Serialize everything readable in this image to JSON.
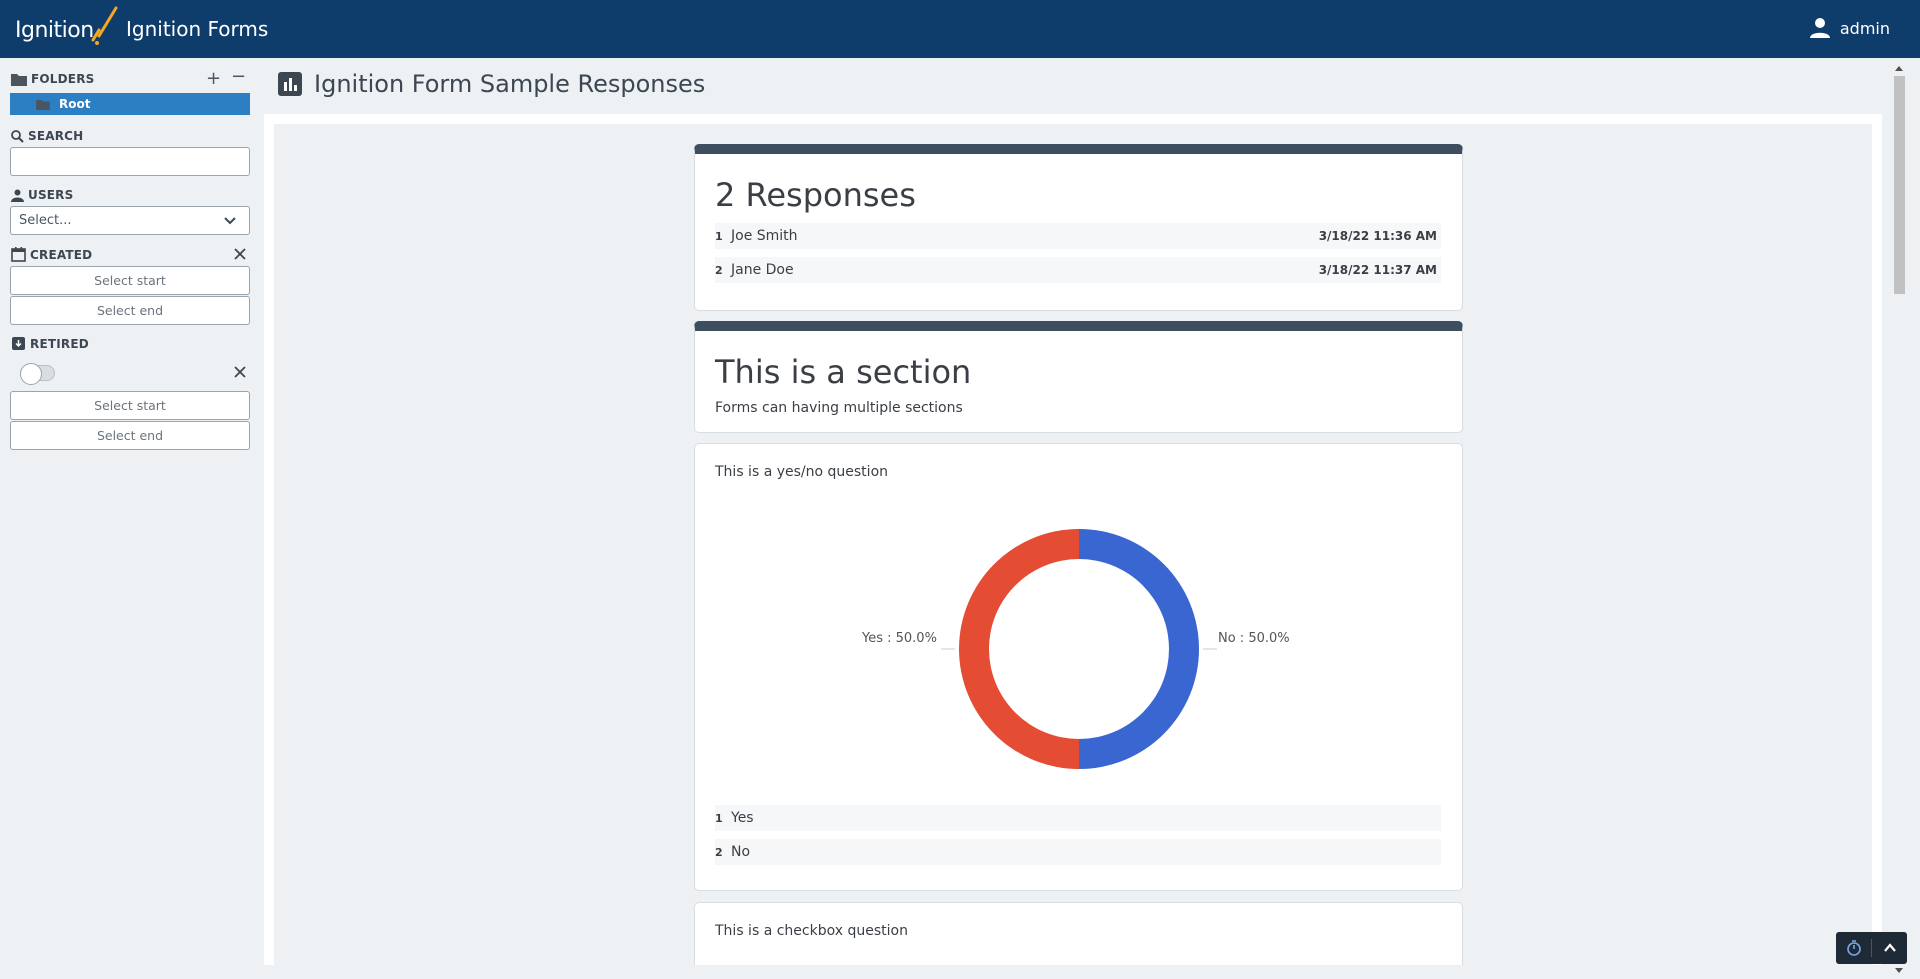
{
  "header": {
    "logo_text": "Ignition",
    "app_title": "Ignition Forms",
    "username": "admin"
  },
  "sidebar": {
    "folders_label": "FOLDERS",
    "root_label": "Root",
    "search_label": "SEARCH",
    "search_value": "",
    "users_label": "USERS",
    "users_placeholder": "Select...",
    "created_label": "CREATED",
    "created_start": "Select start",
    "created_end": "Select end",
    "retired_label": "RETIRED",
    "retired_toggle": false,
    "retired_start": "Select start",
    "retired_end": "Select end"
  },
  "main": {
    "page_title": "Ignition Form Sample Responses",
    "responses": {
      "heading": "2 Responses",
      "rows": [
        {
          "num": "1",
          "name": "Joe Smith",
          "timestamp": "3/18/22 11:36 AM"
        },
        {
          "num": "2",
          "name": "Jane Doe",
          "timestamp": "3/18/22 11:37 AM"
        }
      ]
    },
    "section": {
      "title": "This is a section",
      "subtitle": "Forms can having multiple sections"
    },
    "yesno_question": {
      "label": "This is a yes/no question",
      "label_yes": "Yes : 50.0%",
      "label_no": "No : 50.0%",
      "answers": [
        {
          "num": "1",
          "text": "Yes"
        },
        {
          "num": "2",
          "text": "No"
        }
      ]
    },
    "checkbox_question": {
      "label": "This is a checkbox question"
    }
  },
  "chart_data": {
    "type": "pie",
    "categories": [
      "Yes",
      "No"
    ],
    "values": [
      50.0,
      50.0
    ],
    "colors": [
      "#e44c33",
      "#3a66d1"
    ],
    "title": ""
  },
  "colors": {
    "header_bg": "#0f3d6b",
    "accent": "#2b7fc2",
    "card_bar": "#3d4e5f",
    "yes": "#e44c33",
    "no": "#3a66d1"
  }
}
